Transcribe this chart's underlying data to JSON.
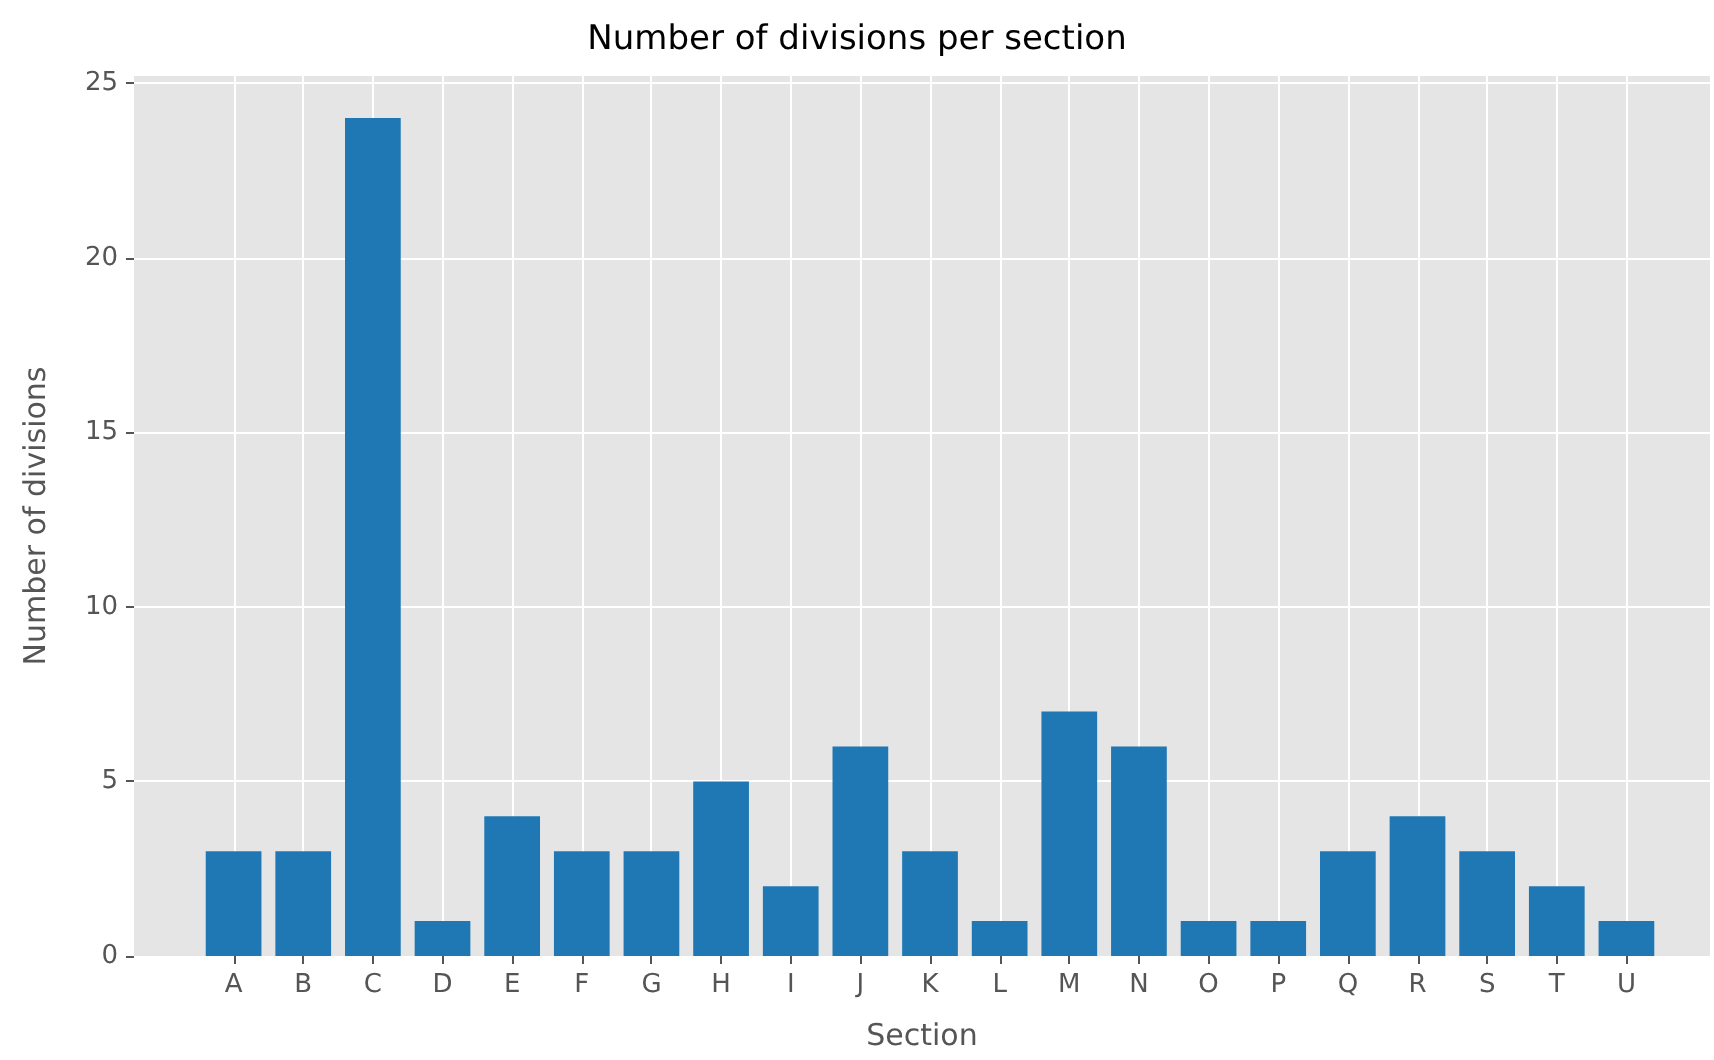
{
  "chart_data": {
    "type": "bar",
    "title": "Number of divisions per section",
    "xlabel": "Section",
    "ylabel": "Number of divisions",
    "categories": [
      "A",
      "B",
      "C",
      "D",
      "E",
      "F",
      "G",
      "H",
      "I",
      "J",
      "K",
      "L",
      "M",
      "N",
      "O",
      "P",
      "Q",
      "R",
      "S",
      "T",
      "U"
    ],
    "values": [
      3,
      3,
      24,
      1,
      4,
      3,
      3,
      5,
      2,
      6,
      3,
      1,
      7,
      6,
      1,
      1,
      3,
      4,
      3,
      2,
      1
    ],
    "color": "#1f77b4",
    "ylim": [
      0,
      25.2
    ],
    "yticks": [
      0,
      5,
      10,
      15,
      20,
      25
    ],
    "grid": true
  }
}
